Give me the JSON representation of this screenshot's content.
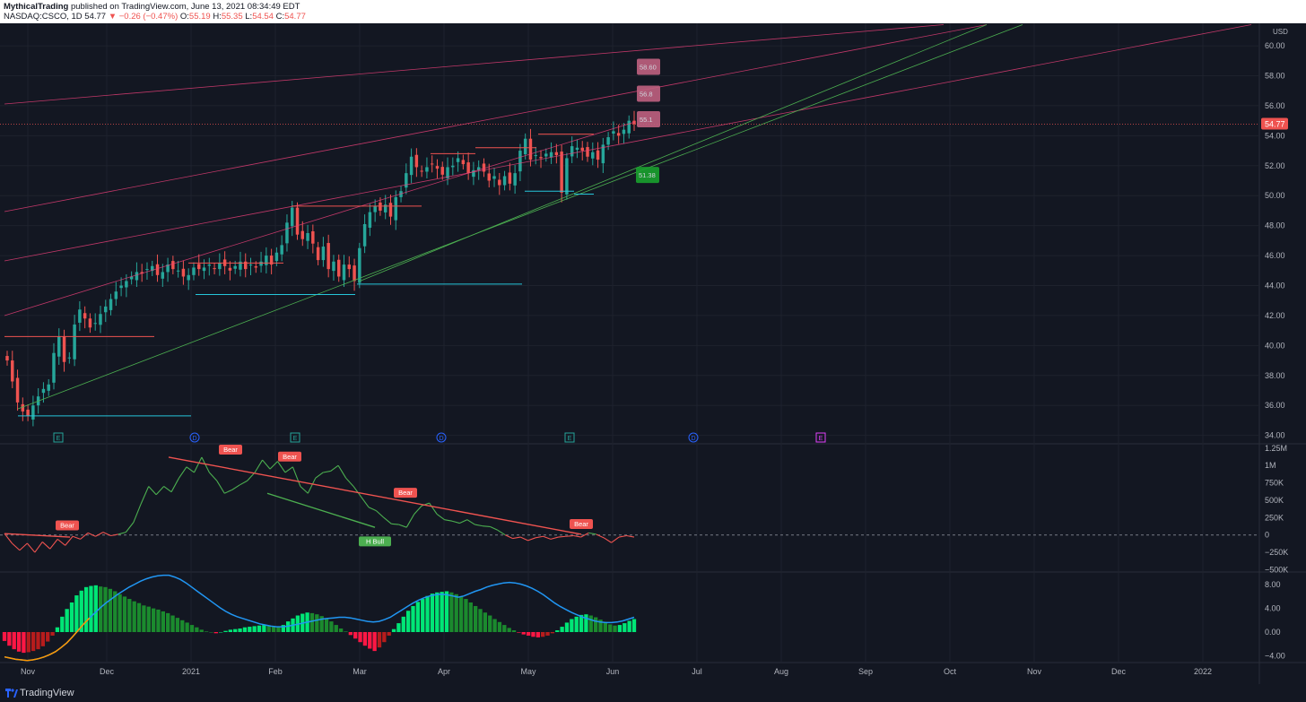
{
  "header": {
    "author": "MythicalTrading",
    "published": "published on TradingView.com, June 13, 2021 08:34:49 EDT",
    "symbol": "NASDAQ:CSCO, 1D",
    "last": "54.77",
    "change": "▼ −0.26 (−0.47%)",
    "o_label": "O:",
    "o": "55.19",
    "h_label": "H:",
    "h": "55.35",
    "l_label": "L:",
    "l": "54.54",
    "c_label": "C:",
    "c": "54.77"
  },
  "footer": {
    "brand": "TradingView"
  },
  "colors": {
    "up": "#26a69a",
    "down": "#ef5350",
    "bg": "#131722",
    "grid": "#1e222d",
    "pink": "#ec407a",
    "green": "#4caf50",
    "blue": "#2196f3",
    "cyan": "#26c6da"
  },
  "chart_data": [
    {
      "type": "candlestick",
      "symbol": "NASDAQ:CSCO",
      "interval": "1D",
      "currency": "USD",
      "ylim": [
        33.5,
        61.5
      ],
      "yticks": [
        "60.00",
        "58.00",
        "56.00",
        "54.00",
        "52.00",
        "50.00",
        "48.00",
        "46.00",
        "44.00",
        "42.00",
        "40.00",
        "38.00",
        "36.00",
        "34.00"
      ],
      "xticks": [
        "Nov",
        "Dec",
        "2021",
        "Feb",
        "Mar",
        "Apr",
        "May",
        "Jun",
        "Jul",
        "Aug",
        "Sep",
        "Oct",
        "Nov",
        "Dec",
        "2022"
      ],
      "last_price_label": "54.77",
      "closes": [
        39.0,
        37.6,
        36.2,
        35.6,
        35.3,
        36.0,
        36.6,
        37.1,
        37.4,
        39.5,
        40.6,
        38.9,
        39.2,
        41.4,
        42.4,
        41.8,
        41.2,
        41.5,
        42.1,
        42.6,
        43.1,
        43.6,
        44.0,
        44.3,
        44.6,
        44.9,
        44.8,
        45.1,
        45.3,
        44.7,
        44.9,
        45.4,
        45.1,
        45.0,
        44.6,
        44.7,
        45.2,
        45.1,
        45.2,
        45.4,
        45.1,
        45.5,
        45.3,
        45.0,
        45.3,
        45.6,
        45.1,
        45.4,
        45.2,
        45.6,
        46.0,
        45.4,
        46.2,
        46.7,
        48.2,
        49.2,
        47.4,
        47.1,
        47.5,
        46.8,
        45.7,
        46.6,
        45.1,
        45.6,
        44.6,
        45.4,
        45.1,
        44.3,
        46.5,
        48.1,
        48.9,
        49.3,
        49.0,
        49.4,
        48.6,
        49.9,
        50.3,
        51.5,
        52.6,
        51.9,
        51.6,
        51.9,
        52.1,
        51.8,
        51.4,
        51.9,
        52.0,
        52.5,
        52.1,
        51.5,
        51.7,
        51.9,
        51.6,
        51.0,
        51.3,
        50.7,
        51.3,
        50.8,
        51.5,
        53.0,
        53.8,
        52.4,
        52.7,
        52.5,
        52.8,
        52.9,
        52.7,
        50.2,
        52.5,
        53.3,
        53.2,
        53.0,
        52.6,
        52.9,
        52.4,
        53.4,
        53.9,
        54.3,
        54.0,
        54.4,
        55.0,
        54.77
      ],
      "labels": [
        "58.60",
        "56.8",
        "55.1",
        "51.38"
      ],
      "event_markers": [
        {
          "label": "E",
          "color": "#26a69a"
        },
        {
          "label": "D",
          "color": "#2962ff"
        },
        {
          "label": "E",
          "color": "#26a69a"
        },
        {
          "label": "D",
          "color": "#2962ff"
        },
        {
          "label": "E",
          "color": "#26a69a"
        },
        {
          "label": "D",
          "color": "#2962ff"
        },
        {
          "label": "E",
          "color": "#e040fb"
        }
      ]
    },
    {
      "type": "line",
      "name": "",
      "ylim": [
        -520000,
        1300000
      ],
      "yticks": [
        "1.25M",
        "1M",
        "750K",
        "500K",
        "250K",
        "0",
        "−250K",
        "−500K"
      ],
      "values": [
        20000,
        -120000,
        -220000,
        -120000,
        -250000,
        -100000,
        -200000,
        -60000,
        -150000,
        -20000,
        -60000,
        30000,
        -20000,
        40000,
        -10000,
        10000,
        40000,
        180000,
        450000,
        700000,
        580000,
        700000,
        620000,
        820000,
        980000,
        900000,
        1120000,
        900000,
        780000,
        600000,
        650000,
        720000,
        780000,
        900000,
        1080000,
        950000,
        1060000,
        900000,
        980000,
        700000,
        600000,
        820000,
        900000,
        920000,
        1000000,
        820000,
        700000,
        550000,
        400000,
        350000,
        250000,
        160000,
        150000,
        110000,
        300000,
        420000,
        460000,
        300000,
        220000,
        200000,
        170000,
        220000,
        150000,
        130000,
        120000,
        70000,
        0,
        -50000,
        -30000,
        -80000,
        -40000,
        -20000,
        -60000,
        -30000,
        -20000,
        -10000,
        -30000,
        30000,
        10000,
        -40000,
        -110000,
        -30000,
        -10000,
        -30000
      ],
      "signals": [
        "Bear",
        "Bear",
        "Bear",
        "Bear",
        "Bear",
        "H Bull"
      ]
    },
    {
      "type": "bar",
      "name": "",
      "ylim": [
        -5.0,
        10.0
      ],
      "yticks": [
        "8.00",
        "4.00",
        "0.00",
        "−4.00"
      ],
      "histogram": [
        -1.5,
        -2.3,
        -2.9,
        -3.3,
        -3.5,
        -3.4,
        -3.2,
        -2.9,
        -2.4,
        -1.6,
        -0.6,
        0.8,
        2.6,
        3.9,
        5.0,
        6.2,
        7.0,
        7.6,
        7.8,
        7.9,
        7.7,
        7.6,
        7.3,
        6.9,
        6.4,
        6.0,
        5.6,
        5.2,
        4.9,
        4.5,
        4.3,
        4.0,
        3.8,
        3.5,
        3.2,
        2.8,
        2.4,
        2.0,
        1.6,
        1.2,
        0.8,
        0.4,
        0.1,
        0.0,
        -0.2,
        0.0,
        0.2,
        0.4,
        0.5,
        0.6,
        0.8,
        0.9,
        1.0,
        1.1,
        1.2,
        1.0,
        0.9,
        0.8,
        1.2,
        1.8,
        2.3,
        2.8,
        3.1,
        3.3,
        3.2,
        3.0,
        2.7,
        2.3,
        1.8,
        1.2,
        0.6,
        0.1,
        -0.5,
        -1.1,
        -1.7,
        -2.3,
        -2.8,
        -3.2,
        -2.6,
        -1.7,
        -0.6,
        0.5,
        1.5,
        2.6,
        3.6,
        4.4,
        5.1,
        5.6,
        6.1,
        6.5,
        6.7,
        6.8,
        6.9,
        6.7,
        6.4,
        6.0,
        5.6,
        5.0,
        4.4,
        3.9,
        3.3,
        2.8,
        2.2,
        1.7,
        1.2,
        0.7,
        0.3,
        -0.1,
        -0.4,
        -0.6,
        -0.8,
        -0.9,
        -0.8,
        -0.6,
        -0.2,
        0.3,
        0.9,
        1.6,
        2.2,
        2.6,
        2.9,
        3.0,
        2.8,
        2.5,
        2.1,
        1.7,
        1.3,
        1.1,
        1.2,
        1.5,
        1.9,
        2.2
      ],
      "signal_line": [
        -4.2,
        -4.4,
        -4.6,
        -4.7,
        -4.8,
        -4.7,
        -4.5,
        -4.2,
        -3.8,
        -3.3,
        -2.6,
        -1.8,
        -0.8,
        0.3,
        1.4,
        2.4,
        3.3,
        4.2,
        5.0,
        5.7,
        6.4,
        7.0,
        7.6,
        8.1,
        8.6,
        9.0,
        9.3,
        9.5,
        9.6,
        9.6,
        9.3,
        8.9,
        8.3,
        7.6,
        6.9,
        6.2,
        5.5,
        4.8,
        4.1,
        3.5,
        3.0,
        2.6,
        2.3,
        2.0,
        1.7,
        1.4,
        1.2,
        1.0,
        0.9,
        0.9,
        1.0,
        1.2,
        1.4,
        1.6,
        1.8,
        2.0,
        2.2,
        2.3,
        2.4,
        2.5,
        2.5,
        2.4,
        2.2,
        2.0,
        1.8,
        1.7,
        1.8,
        2.1,
        2.5,
        3.1,
        3.7,
        4.3,
        4.9,
        5.4,
        5.8,
        6.1,
        6.3,
        6.4,
        6.3,
        6.1,
        5.9,
        6.1,
        6.5,
        6.9,
        7.2,
        7.6,
        7.9,
        8.1,
        8.3,
        8.4,
        8.3,
        8.1,
        7.8,
        7.4,
        6.9,
        6.3,
        5.6,
        4.9,
        4.3,
        3.8,
        3.3,
        2.9,
        2.5,
        2.2,
        1.9,
        1.7,
        1.6,
        1.6,
        1.7,
        1.9,
        2.2,
        2.5
      ],
      "colors_note": "bright green rising, dark green falling, red negative, blue signal line, orange early signal segment"
    }
  ]
}
